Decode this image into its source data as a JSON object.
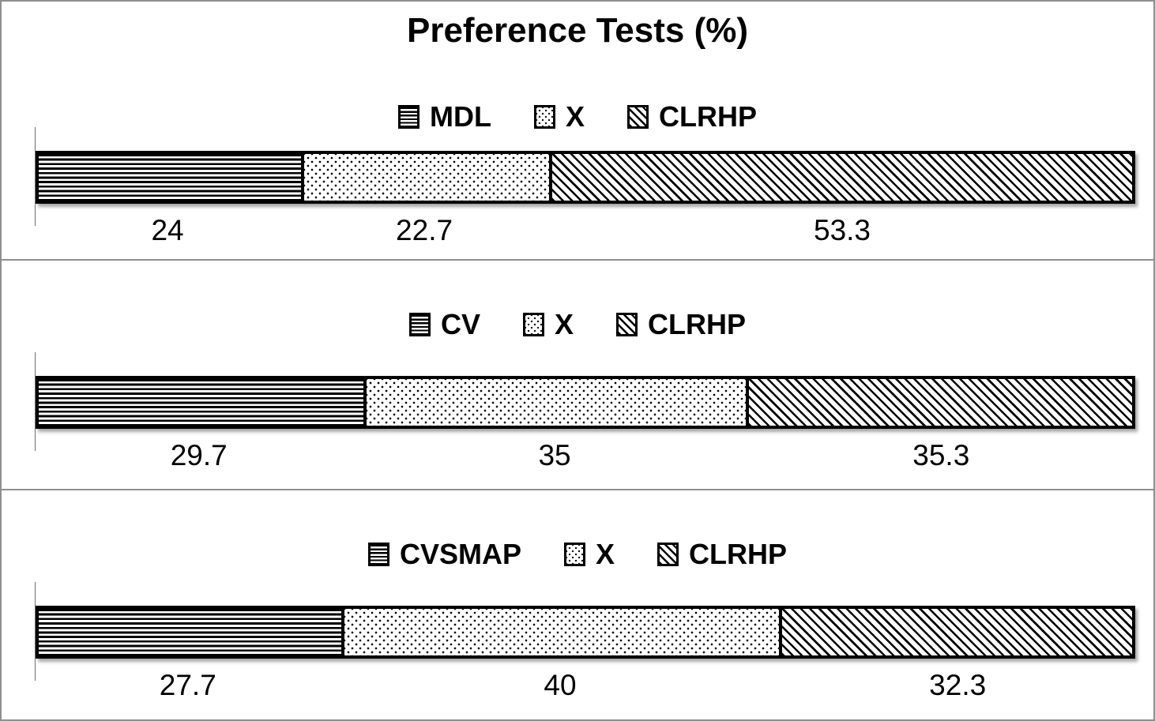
{
  "title": "Preference Tests (%)",
  "colors": {
    "ink": "#000000",
    "background": "#ffffff",
    "frame_border": "#8f8f8f",
    "axis_line": "#6e6e6e"
  },
  "legend_patterns": {
    "first": "horizontal-lines",
    "second": "dots",
    "third": "diagonal-lines"
  },
  "chart_data": [
    {
      "type": "bar",
      "orientation": "horizontal-stacked",
      "title": "Preference Tests (%)",
      "xlim": [
        0,
        100
      ],
      "grid": false,
      "legend_position": "top-center",
      "series": [
        {
          "name": "MDL",
          "value": 24,
          "label": "24",
          "pattern": "horizontal-lines"
        },
        {
          "name": "X",
          "value": 22.7,
          "label": "22.7",
          "pattern": "dots"
        },
        {
          "name": "CLRHP",
          "value": 53.3,
          "label": "53.3",
          "pattern": "diagonal-lines"
        }
      ]
    },
    {
      "type": "bar",
      "orientation": "horizontal-stacked",
      "title": "",
      "xlim": [
        0,
        100
      ],
      "grid": false,
      "legend_position": "top-center",
      "series": [
        {
          "name": "CV",
          "value": 29.7,
          "label": "29.7",
          "pattern": "horizontal-lines"
        },
        {
          "name": "X",
          "value": 35,
          "label": "35",
          "pattern": "dots"
        },
        {
          "name": "CLRHP",
          "value": 35.3,
          "label": "35.3",
          "pattern": "diagonal-lines"
        }
      ]
    },
    {
      "type": "bar",
      "orientation": "horizontal-stacked",
      "title": "",
      "xlim": [
        0,
        100
      ],
      "grid": false,
      "legend_position": "top-center",
      "series": [
        {
          "name": "CVSMAP",
          "value": 27.7,
          "label": "27.7",
          "pattern": "horizontal-lines"
        },
        {
          "name": "X",
          "value": 40,
          "label": "40",
          "pattern": "dots"
        },
        {
          "name": "CLRHP",
          "value": 32.3,
          "label": "32.3",
          "pattern": "diagonal-lines"
        }
      ]
    }
  ]
}
